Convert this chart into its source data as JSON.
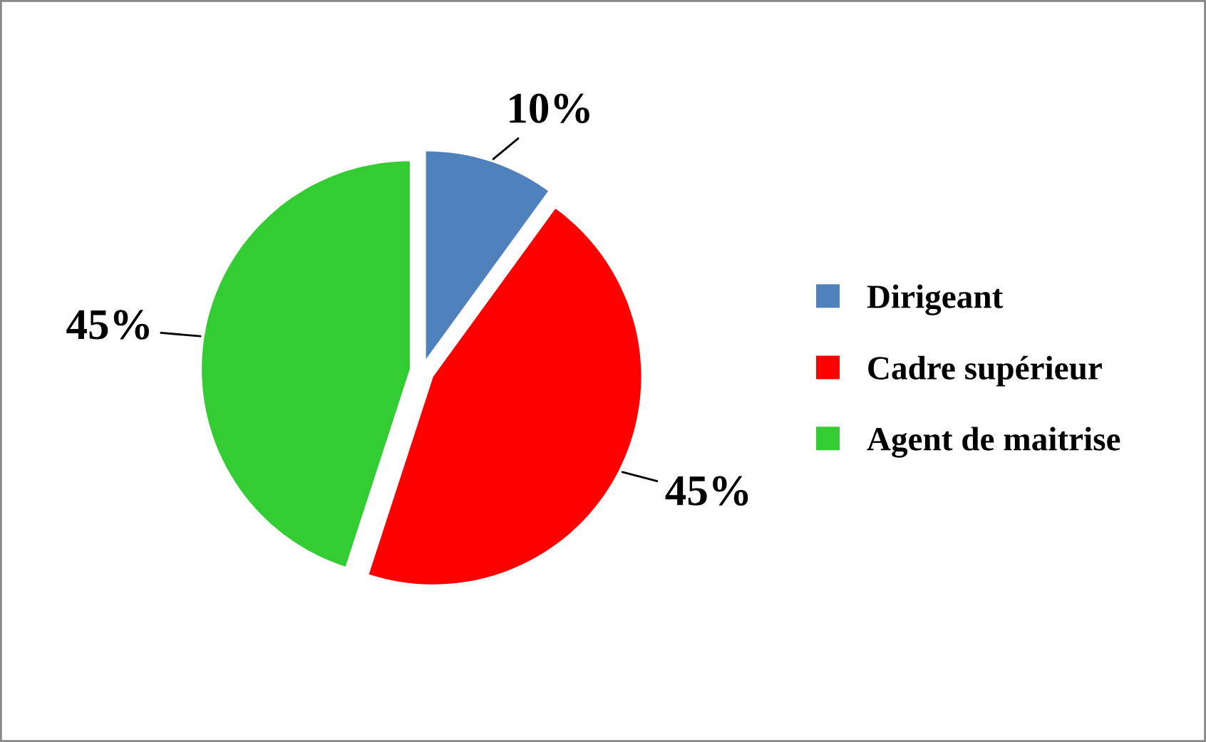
{
  "chart_data": {
    "type": "pie",
    "categories": [
      "Dirigeant",
      "Cadre supérieur",
      "Agent de maitrise"
    ],
    "values": [
      10,
      45,
      45
    ],
    "colors": [
      "#4f81bd",
      "#ff0000",
      "#33cc33"
    ],
    "value_labels": [
      "10%",
      "45%",
      "45%"
    ],
    "legend": "right"
  }
}
